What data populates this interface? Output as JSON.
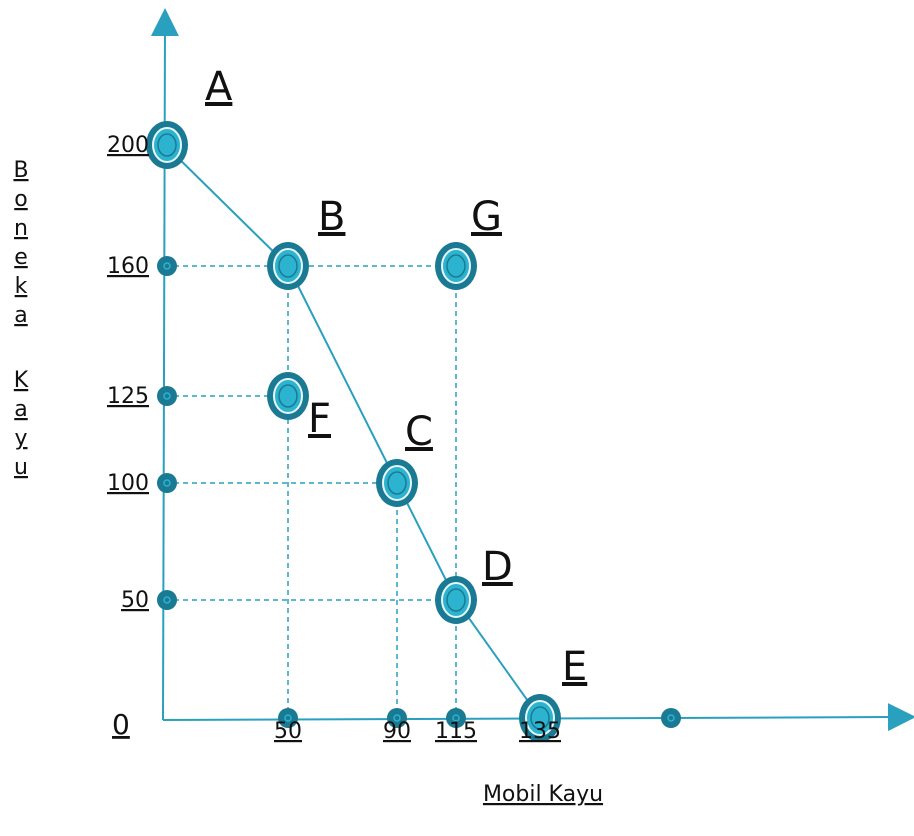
{
  "chart_data": {
    "type": "line",
    "xlabel": "Mobil Kayu",
    "ylabel": "Boneka Kayu",
    "origin_label": "0",
    "xlim": [
      0,
      180
    ],
    "ylim": [
      0,
      200
    ],
    "x_ticks": [
      "50",
      "90",
      "115",
      "135"
    ],
    "y_ticks": [
      "200",
      "160",
      "125",
      "100",
      "50"
    ],
    "points": [
      {
        "name": "A",
        "x": 0,
        "y": 200,
        "on_curve": true
      },
      {
        "name": "B",
        "x": 50,
        "y": 160,
        "on_curve": true
      },
      {
        "name": "C",
        "x": 90,
        "y": 100,
        "on_curve": true
      },
      {
        "name": "D",
        "x": 115,
        "y": 50,
        "on_curve": true
      },
      {
        "name": "E",
        "x": 135,
        "y": 0,
        "on_curve": true
      },
      {
        "name": "F",
        "x": 50,
        "y": 125,
        "on_curve": false
      },
      {
        "name": "G",
        "x": 115,
        "y": 160,
        "on_curve": false
      }
    ],
    "axis_markers_x": [
      50,
      90,
      115,
      175
    ],
    "axis_markers_y": [
      160,
      125,
      100,
      50
    ]
  },
  "colors": {
    "line": "#2aa0bf",
    "marker_outer": "#1b7a93",
    "marker_inner": "#2bb3cf",
    "text": "#111111"
  }
}
